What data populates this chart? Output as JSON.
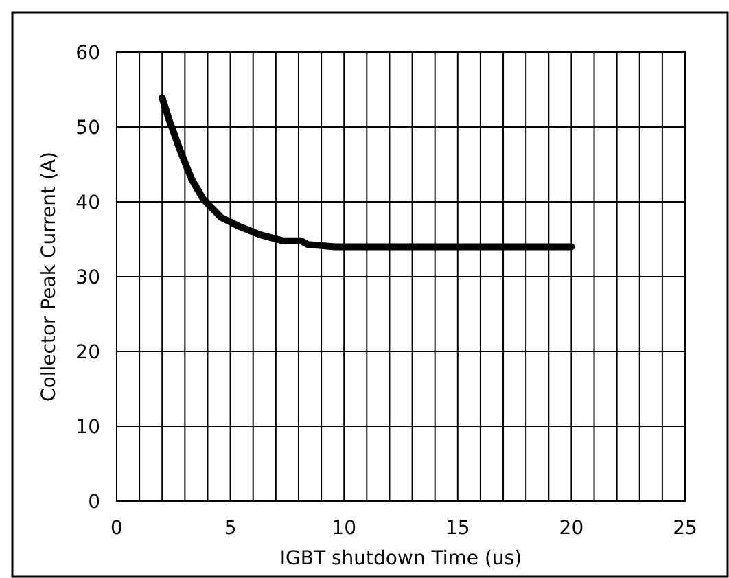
{
  "chart_data": {
    "type": "line",
    "xlabel": "IGBT shutdown Time (us)",
    "ylabel": "Collector Peak Current (A)",
    "xlim": [
      0,
      25
    ],
    "xticks": [
      0,
      5,
      10,
      15,
      20,
      25
    ],
    "ylim": [
      0,
      60
    ],
    "yticks": [
      0,
      10,
      20,
      30,
      40,
      50,
      60
    ],
    "grid": true,
    "marker": "none",
    "line_style": "solid",
    "series": [
      {
        "color": "#000000",
        "x": [
          2,
          2.3,
          2.8,
          3.3,
          3.8,
          4.6,
          5.4,
          6.3,
          7.3,
          8.1,
          8.4,
          9.6,
          12,
          15,
          18,
          20
        ],
        "values": [
          53.9,
          51,
          46.8,
          43,
          40.4,
          37.9,
          36.7,
          35.6,
          34.8,
          34.8,
          34.3,
          34,
          34,
          34,
          34,
          34
        ]
      }
    ]
  }
}
